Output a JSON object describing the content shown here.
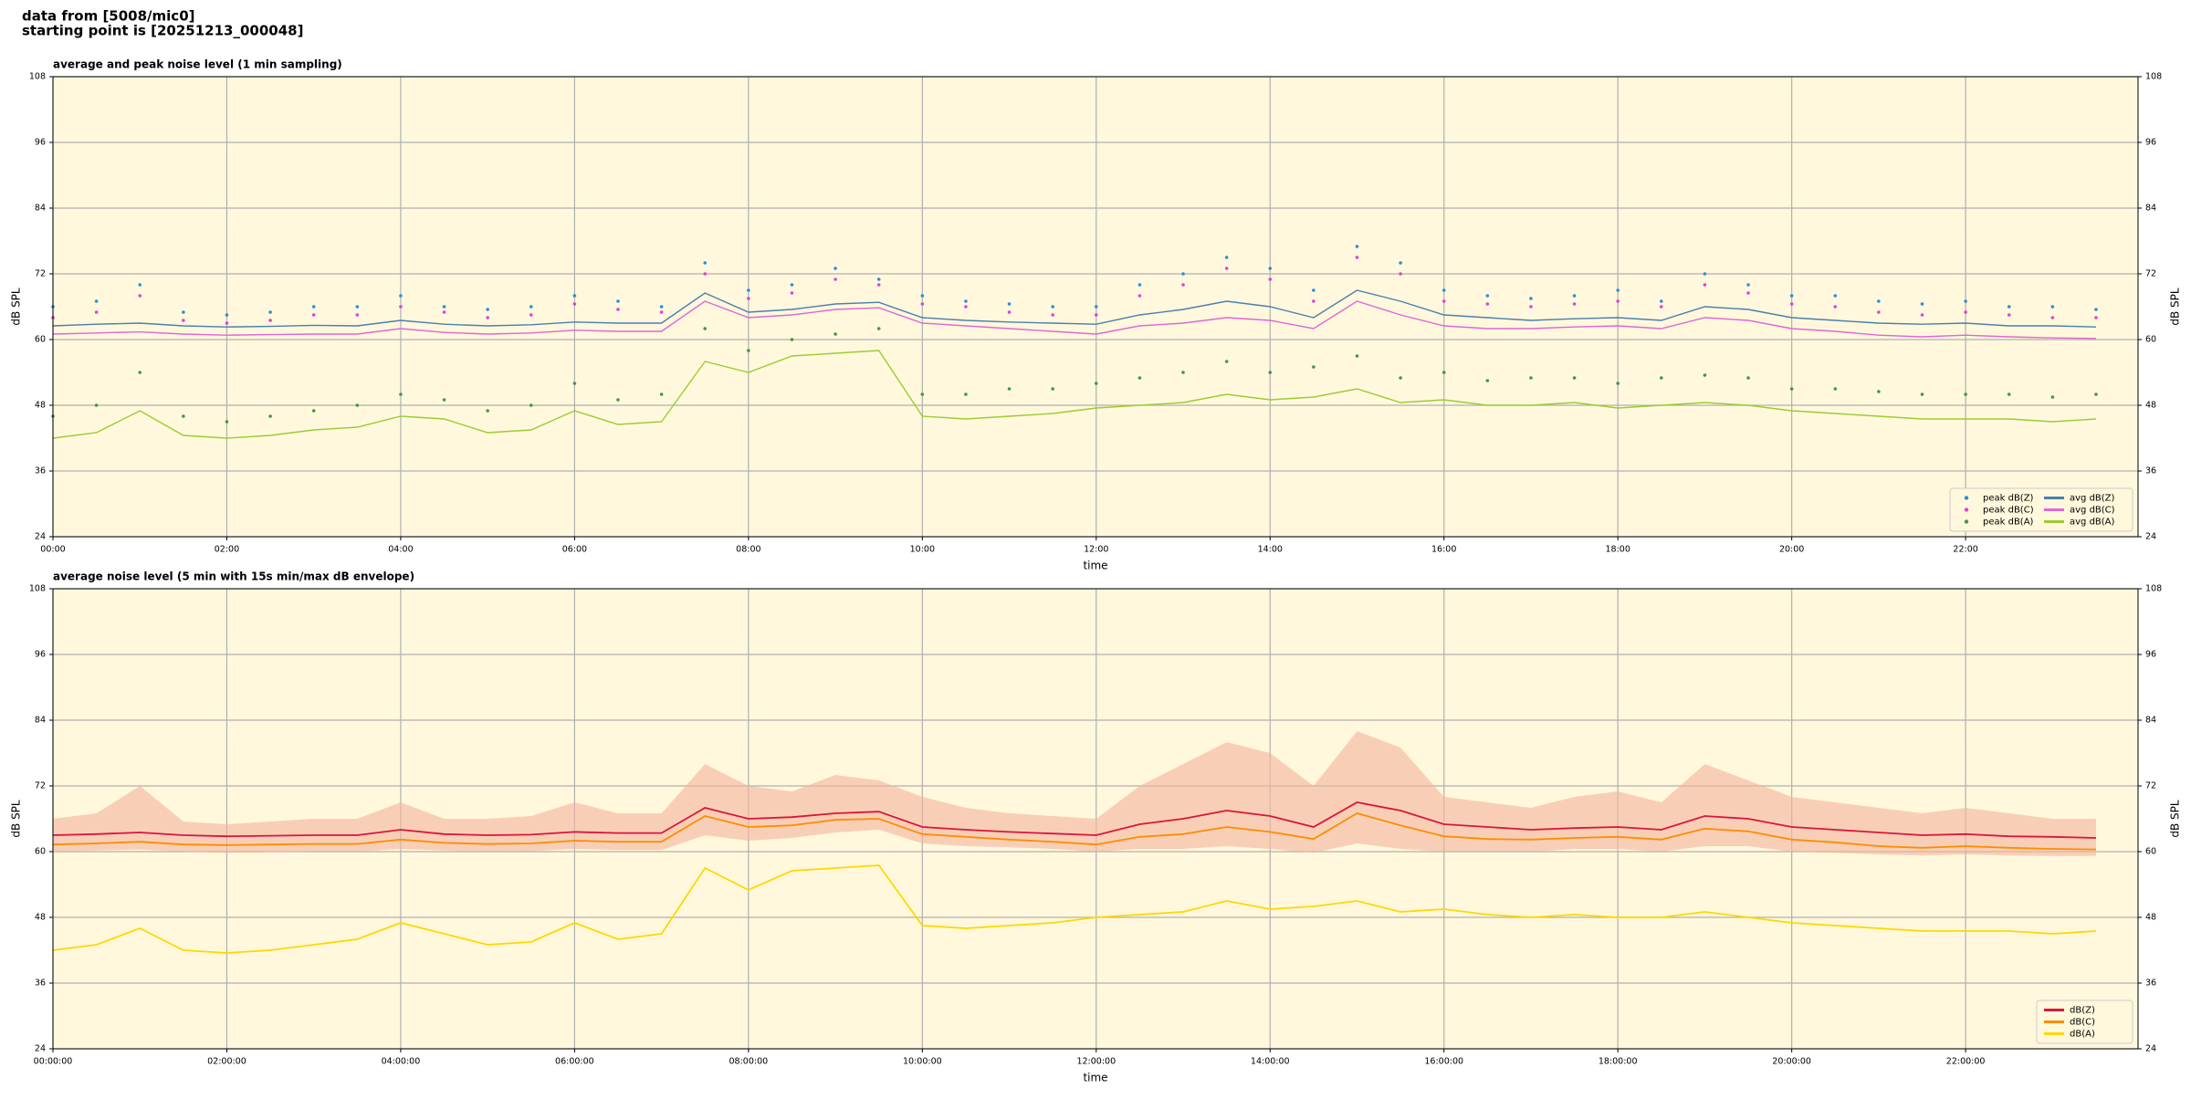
{
  "header": {
    "line1": "data from [5008/mic0]",
    "line2": "starting point is [20251213_000048]"
  },
  "chart_data": [
    {
      "type": "line",
      "title": "average and peak noise level (1 min sampling)",
      "x_label": "time",
      "y_label": "dB SPL",
      "x": [
        "00:00",
        "00:30",
        "01:00",
        "01:30",
        "02:00",
        "02:30",
        "03:00",
        "03:30",
        "04:00",
        "04:30",
        "05:00",
        "05:30",
        "06:00",
        "06:30",
        "07:00",
        "07:30",
        "08:00",
        "08:30",
        "09:00",
        "09:30",
        "10:00",
        "10:30",
        "11:00",
        "11:30",
        "12:00",
        "12:30",
        "13:00",
        "13:30",
        "14:00",
        "14:30",
        "15:00",
        "15:30",
        "16:00",
        "16:30",
        "17:00",
        "17:30",
        "18:00",
        "18:30",
        "19:00",
        "19:30",
        "20:00",
        "20:30",
        "21:00",
        "21:30",
        "22:00",
        "22:30",
        "23:00",
        "23:30"
      ],
      "xlim": [
        "00:00",
        "23:59"
      ],
      "xticks": [
        "00:00",
        "02:00",
        "04:00",
        "06:00",
        "08:00",
        "10:00",
        "12:00",
        "14:00",
        "16:00",
        "18:00",
        "20:00",
        "22:00"
      ],
      "ylim": [
        24,
        108
      ],
      "yticks": [
        24,
        36,
        48,
        60,
        72,
        84,
        96,
        108
      ],
      "grid": true,
      "legend": "lower right",
      "background": "#fff8dc",
      "series": [
        {
          "name": "peak dB(Z)",
          "kind": "scatter",
          "color": "#2a8fd8",
          "values": [
            66,
            67,
            70,
            65,
            64.5,
            65,
            66,
            66,
            68,
            66,
            65.5,
            66,
            68,
            67,
            66,
            74,
            69,
            70,
            73,
            71,
            68,
            67,
            66.5,
            66,
            66,
            70,
            72,
            75,
            73,
            69,
            77,
            74,
            69,
            68,
            67.5,
            68,
            69,
            67,
            72,
            70,
            68,
            68,
            67,
            66.5,
            67,
            66,
            66,
            65.5
          ]
        },
        {
          "name": "peak dB(C)",
          "kind": "scatter",
          "color": "#e040d8",
          "values": [
            64,
            65,
            68,
            63.5,
            63,
            63.5,
            64.5,
            64.5,
            66,
            65,
            64,
            64.5,
            66.5,
            65.5,
            65,
            72,
            67.5,
            68.5,
            71,
            70,
            66.5,
            66,
            65,
            64.5,
            64.5,
            68,
            70,
            73,
            71,
            67,
            75,
            72,
            67,
            66.5,
            66,
            66.5,
            67,
            66,
            70,
            68.5,
            66.5,
            66,
            65,
            64.5,
            65,
            64.5,
            64,
            64
          ]
        },
        {
          "name": "peak dB(A)",
          "kind": "scatter",
          "color": "#3f9a3f",
          "values": [
            46,
            48,
            54,
            46,
            45,
            46,
            47,
            48,
            50,
            49,
            47,
            48,
            52,
            49,
            50,
            62,
            58,
            60,
            61,
            62,
            50,
            50,
            51,
            51,
            52,
            53,
            54,
            56,
            54,
            55,
            57,
            53,
            54,
            52.5,
            53,
            53,
            52,
            53,
            53.5,
            53,
            51,
            51,
            50.5,
            50,
            50,
            50,
            49.5,
            50
          ]
        },
        {
          "name": "avg dB(Z)",
          "kind": "line",
          "color": "#4a7fb0",
          "values": [
            62.5,
            62.8,
            63,
            62.5,
            62.3,
            62.4,
            62.6,
            62.5,
            63.5,
            62.8,
            62.5,
            62.7,
            63.2,
            63,
            63,
            68.5,
            65,
            65.5,
            66.5,
            66.8,
            64,
            63.5,
            63.2,
            63,
            62.8,
            64.5,
            65.5,
            67,
            66,
            64,
            69,
            67,
            64.5,
            64,
            63.5,
            63.8,
            64,
            63.5,
            66,
            65.5,
            64,
            63.5,
            63,
            62.8,
            63,
            62.5,
            62.5,
            62.3
          ]
        },
        {
          "name": "avg dB(C)",
          "kind": "line",
          "color": "#e066d6",
          "values": [
            61,
            61.2,
            61.4,
            61,
            60.8,
            60.9,
            61,
            61,
            62,
            61.3,
            61,
            61.2,
            61.7,
            61.5,
            61.5,
            67,
            64,
            64.5,
            65.5,
            65.8,
            63,
            62.5,
            62,
            61.5,
            61,
            62.5,
            63,
            64,
            63.5,
            62,
            67,
            64.5,
            62.5,
            62,
            62,
            62.3,
            62.5,
            62,
            64,
            63.5,
            62,
            61.5,
            60.8,
            60.5,
            60.8,
            60.5,
            60.3,
            60.2
          ]
        },
        {
          "name": "avg dB(A)",
          "kind": "line",
          "color": "#9acd32",
          "values": [
            42,
            43,
            47,
            42.5,
            42,
            42.5,
            43.5,
            44,
            46,
            45.5,
            43,
            43.5,
            47,
            44.5,
            45,
            56,
            54,
            57,
            57.5,
            58,
            46,
            45.5,
            46,
            46.5,
            47.5,
            48,
            48.5,
            50,
            49,
            49.5,
            51,
            48.5,
            49,
            48,
            48,
            48.5,
            47.5,
            48,
            48.5,
            48,
            47,
            46.5,
            46,
            45.5,
            45.5,
            45.5,
            45,
            45.5
          ]
        }
      ]
    },
    {
      "type": "line",
      "title": "average noise level (5 min with 15s min/max dB envelope)",
      "x_label": "time",
      "y_label": "dB SPL",
      "x": [
        "00:00:00",
        "00:30:00",
        "01:00:00",
        "01:30:00",
        "02:00:00",
        "02:30:00",
        "03:00:00",
        "03:30:00",
        "04:00:00",
        "04:30:00",
        "05:00:00",
        "05:30:00",
        "06:00:00",
        "06:30:00",
        "07:00:00",
        "07:30:00",
        "08:00:00",
        "08:30:00",
        "09:00:00",
        "09:30:00",
        "10:00:00",
        "10:30:00",
        "11:00:00",
        "11:30:00",
        "12:00:00",
        "12:30:00",
        "13:00:00",
        "13:30:00",
        "14:00:00",
        "14:30:00",
        "15:00:00",
        "15:30:00",
        "16:00:00",
        "16:30:00",
        "17:00:00",
        "17:30:00",
        "18:00:00",
        "18:30:00",
        "19:00:00",
        "19:30:00",
        "20:00:00",
        "20:30:00",
        "21:00:00",
        "21:30:00",
        "22:00:00",
        "22:30:00",
        "23:00:00",
        "23:30:00"
      ],
      "xlim": [
        "00:00:00",
        "23:59:00"
      ],
      "xticks": [
        "00:00:00",
        "02:00:00",
        "04:00:00",
        "06:00:00",
        "08:00:00",
        "10:00:00",
        "12:00:00",
        "14:00:00",
        "16:00:00",
        "18:00:00",
        "20:00:00",
        "22:00:00"
      ],
      "ylim": [
        24,
        108
      ],
      "yticks": [
        24,
        36,
        48,
        60,
        72,
        84,
        96,
        108
      ],
      "grid": true,
      "legend": "lower right",
      "background": "#fff8dc",
      "band": {
        "color": "#f4b49c",
        "low": [
          60,
          60.2,
          60.4,
          60,
          59.8,
          59.9,
          60,
          60,
          60.5,
          60.2,
          60,
          60.1,
          60.5,
          60.3,
          60.3,
          63,
          62,
          62.5,
          63.5,
          64,
          61.5,
          61,
          60.8,
          60.5,
          60,
          60.5,
          60.5,
          61,
          60.5,
          59.8,
          61.5,
          60.5,
          60,
          60,
          60,
          60.5,
          60.5,
          60,
          61,
          61,
          60,
          59.8,
          59.5,
          59.3,
          59.5,
          59.3,
          59.2,
          59.2
        ],
        "high": [
          66,
          67,
          72,
          65.5,
          65,
          65.5,
          66,
          66,
          69,
          66,
          66,
          66.5,
          69,
          67,
          67,
          76,
          72,
          71,
          74,
          73,
          70,
          68,
          67,
          66.5,
          66,
          72,
          76,
          80,
          78,
          72,
          82,
          79,
          70,
          69,
          68,
          70,
          71,
          69,
          76,
          73,
          70,
          69,
          68,
          67,
          68,
          67,
          66,
          66
        ]
      },
      "series": [
        {
          "name": "dB(Z)",
          "kind": "line",
          "color": "#dc143c",
          "values": [
            63,
            63.2,
            63.5,
            63,
            62.8,
            62.9,
            63,
            63,
            64,
            63.2,
            63,
            63.1,
            63.6,
            63.4,
            63.4,
            68,
            66,
            66.3,
            67,
            67.3,
            64.5,
            64,
            63.6,
            63.3,
            63,
            65,
            66,
            67.5,
            66.5,
            64.5,
            69,
            67.5,
            65,
            64.5,
            64,
            64.3,
            64.5,
            64,
            66.5,
            66,
            64.5,
            64,
            63.5,
            63,
            63.2,
            62.8,
            62.7,
            62.5
          ]
        },
        {
          "name": "dB(C)",
          "kind": "line",
          "color": "#ff8c00",
          "values": [
            61.3,
            61.5,
            61.8,
            61.3,
            61.2,
            61.3,
            61.4,
            61.4,
            62.2,
            61.6,
            61.4,
            61.5,
            62,
            61.8,
            61.8,
            66.5,
            64.5,
            64.8,
            65.8,
            66,
            63.2,
            62.7,
            62.2,
            61.8,
            61.3,
            62.7,
            63.2,
            64.5,
            63.6,
            62.3,
            67,
            64.8,
            62.8,
            62.3,
            62.2,
            62.5,
            62.7,
            62.2,
            64.2,
            63.7,
            62.2,
            61.7,
            61,
            60.7,
            61,
            60.7,
            60.5,
            60.4
          ]
        },
        {
          "name": "dB(A)",
          "kind": "line",
          "color": "#ffd700",
          "values": [
            42,
            43,
            46,
            42,
            41.5,
            42,
            43,
            44,
            47,
            45,
            43,
            43.5,
            47,
            44,
            45,
            57,
            53,
            56.5,
            57,
            57.5,
            46.5,
            46,
            46.5,
            47,
            48,
            48.5,
            49,
            51,
            49.5,
            50,
            51,
            49,
            49.5,
            48.5,
            48,
            48.5,
            48,
            48,
            49,
            48,
            47,
            46.5,
            46,
            45.5,
            45.5,
            45.5,
            45,
            45.5
          ]
        }
      ]
    }
  ]
}
